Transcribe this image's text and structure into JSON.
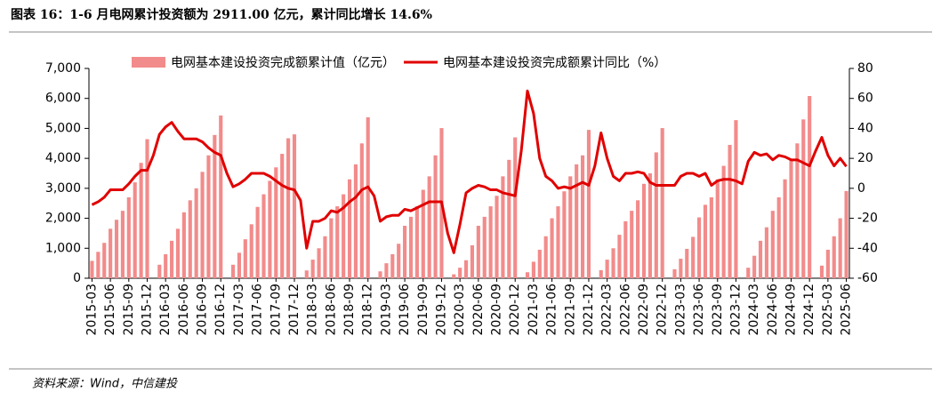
{
  "chart_data": {
    "type": "bar_line",
    "title": "图表 16：1-6 月电网累计投资额为 2911.00 亿元，累计同比增长 14.6%",
    "source": "资料来源：Wind，中信建投",
    "categories": [
      "2015-03",
      null,
      null,
      "2015-06",
      null,
      null,
      "2015-09",
      null,
      null,
      "2015-12",
      null,
      null,
      "2016-03",
      null,
      null,
      "2016-06",
      null,
      null,
      "2016-09",
      null,
      null,
      "2016-12",
      null,
      null,
      "2017-03",
      null,
      null,
      "2017-06",
      null,
      null,
      "2017-09",
      null,
      null,
      "2017-12",
      null,
      null,
      "2018-03",
      null,
      null,
      "2018-06",
      null,
      null,
      "2018-09",
      null,
      null,
      "2018-12",
      null,
      null,
      "2019-03",
      null,
      null,
      "2019-06",
      null,
      null,
      "2019-09",
      null,
      null,
      "2019-12",
      null,
      null,
      "2020-03",
      null,
      null,
      "2020-06",
      null,
      null,
      "2020-09",
      null,
      null,
      "2020-12",
      null,
      null,
      "2021-03",
      null,
      null,
      "2021-06",
      null,
      null,
      "2021-09",
      null,
      null,
      "2021-12",
      null,
      null,
      "2022-03",
      null,
      null,
      "2022-06",
      null,
      null,
      "2022-09",
      null,
      null,
      "2022-12",
      null,
      null,
      "2023-03",
      null,
      null,
      "2023-06",
      null,
      null,
      "2023-09",
      null,
      null,
      "2023-12",
      null,
      null,
      "2024-03",
      null,
      null,
      "2024-06",
      null,
      null,
      "2024-09",
      null,
      null,
      "2024-12",
      null,
      null,
      "2025-03",
      null,
      null,
      "2025-06"
    ],
    "series": [
      {
        "name": "电网基本建设投资完成额累计值（亿元）",
        "color": "#f28b8b",
        "values": [
          580,
          880,
          1180,
          1650,
          1950,
          2250,
          2700,
          3200,
          3850,
          4640,
          null,
          450,
          800,
          1250,
          1650,
          2200,
          2600,
          3000,
          3550,
          4100,
          4780,
          5430,
          null,
          450,
          850,
          1300,
          1800,
          2380,
          2800,
          3250,
          3700,
          4150,
          4670,
          4800,
          null,
          260,
          620,
          1000,
          1400,
          2000,
          2400,
          2800,
          3300,
          3800,
          4500,
          5370,
          null,
          230,
          500,
          800,
          1150,
          1750,
          2050,
          2400,
          2950,
          3400,
          4100,
          5010,
          null,
          130,
          350,
          600,
          1100,
          1750,
          2050,
          2400,
          2750,
          3400,
          3950,
          4700,
          null,
          200,
          550,
          950,
          1400,
          2000,
          2400,
          2900,
          3400,
          3800,
          4100,
          4950,
          null,
          270,
          620,
          1000,
          1450,
          1900,
          2250,
          2600,
          3150,
          3500,
          4200,
          5010,
          null,
          300,
          650,
          980,
          1380,
          2030,
          2450,
          2700,
          3300,
          3750,
          4450,
          5275,
          null,
          350,
          750,
          1250,
          1700,
          2250,
          2700,
          3300,
          3950,
          4500,
          5300,
          6080,
          null,
          420,
          950,
          1400,
          2000,
          2911
        ]
      },
      {
        "name": "电网基本建设投资完成额累计同比（%）",
        "color": "#e00000",
        "axis": "y2",
        "values": [
          -11,
          -9,
          -6,
          -1,
          -1,
          -1,
          3,
          8,
          12,
          12,
          22,
          36,
          41,
          44,
          38,
          33,
          33,
          33,
          31,
          27,
          24,
          22,
          10,
          1,
          3,
          6,
          10,
          10,
          10,
          8,
          5,
          2,
          0,
          -1,
          -8,
          -40,
          -22,
          -22,
          -20,
          -15,
          -16,
          -13,
          -9,
          -6,
          -1,
          1,
          -5,
          -22,
          -19,
          -18,
          -18,
          -14,
          -15,
          -13,
          -11,
          -9,
          -9,
          -9,
          -30,
          -43,
          -24,
          -3,
          0,
          2,
          1,
          -1,
          -1,
          -3,
          -4,
          -5,
          25,
          65,
          50,
          20,
          8,
          5,
          0,
          1,
          0,
          2,
          4,
          2,
          15,
          37,
          20,
          8,
          5,
          10,
          10,
          11,
          10,
          4,
          2,
          2,
          2,
          2,
          8,
          10,
          10,
          8,
          10,
          2,
          5,
          6,
          6,
          5,
          3,
          18,
          24,
          22,
          23,
          19,
          22,
          21,
          19,
          19,
          17,
          15,
          25,
          34,
          22,
          15,
          20,
          14.6
        ]
      }
    ],
    "ylim": [
      0,
      7000
    ],
    "yticks": [
      0,
      {
        "value": 1000,
        "label": "1,000"
      },
      {
        "value": 2000,
        "label": "2,000"
      },
      {
        "value": 3000,
        "label": "3,000"
      },
      {
        "value": 4000,
        "label": "4,000"
      },
      {
        "value": 5000,
        "label": "5,000"
      },
      {
        "value": 6000,
        "label": "6,000"
      },
      {
        "value": 7000,
        "label": "7,000"
      }
    ],
    "y2lim": [
      -60,
      80
    ],
    "y2ticks": [
      -60,
      -40,
      -20,
      0,
      20,
      40,
      60,
      80
    ]
  }
}
